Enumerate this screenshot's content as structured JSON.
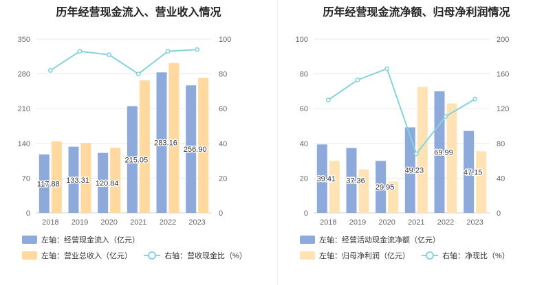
{
  "chart_data": [
    {
      "type": "bar",
      "title": "历年经营现金流入、营业收入情况",
      "categories": [
        "2018",
        "2019",
        "2020",
        "2021",
        "2022",
        "2023"
      ],
      "y_left": {
        "ylim": [
          0,
          350
        ],
        "ticks": [
          "0",
          "70",
          "140",
          "210",
          "280",
          "350"
        ]
      },
      "y_right": {
        "ylim": [
          0,
          100
        ],
        "ticks": [
          "0",
          "20",
          "40",
          "60",
          "80",
          "100"
        ]
      },
      "series": [
        {
          "name": "左轴：经营现金流入（亿元）",
          "type": "bar",
          "axis": "left",
          "color": "#8eaadb",
          "values": [
            117.88,
            133.31,
            120.84,
            215.05,
            283.16,
            256.9
          ],
          "labels": [
            "117.88",
            "133.31",
            "120.84",
            "215.05",
            "283.16",
            "256.90"
          ]
        },
        {
          "name": "左轴：营业总收入（亿元）",
          "type": "bar",
          "axis": "left",
          "color": "#ffd9a0",
          "values": [
            144,
            141,
            131,
            267,
            302,
            272
          ]
        },
        {
          "name": "右轴：营收现金比（%）",
          "type": "line",
          "axis": "right",
          "color": "#86d3dc",
          "values": [
            82,
            93,
            91,
            80,
            93,
            94
          ]
        }
      ],
      "grid": true
    },
    {
      "type": "bar",
      "title": "历年经营现金流净额、归母净利润情况",
      "categories": [
        "2018",
        "2019",
        "2020",
        "2021",
        "2022",
        "2023"
      ],
      "y_left": {
        "ylim": [
          0,
          100
        ],
        "ticks": [
          "0",
          "20",
          "40",
          "60",
          "80",
          "100"
        ]
      },
      "y_right": {
        "ylim": [
          0,
          200
        ],
        "ticks": [
          "0",
          "40",
          "80",
          "120",
          "160",
          "200"
        ]
      },
      "series": [
        {
          "name": "左轴：经营活动现金流净额（亿元）",
          "type": "bar",
          "axis": "left",
          "color": "#8eaadb",
          "values": [
            39.41,
            37.36,
            29.95,
            49.23,
            69.99,
            47.15
          ],
          "labels": [
            "39.41",
            "37.36",
            "29.95",
            "49.23",
            "69.99",
            "47.15"
          ]
        },
        {
          "name": "左轴：归母净利润（亿元）",
          "type": "bar",
          "axis": "left",
          "color": "#ffe3b5",
          "values": [
            30,
            25,
            18,
            72.5,
            63,
            35.5
          ]
        },
        {
          "name": "右轴：净现比（%）",
          "type": "line",
          "axis": "right",
          "color": "#86d3dc",
          "values": [
            130,
            153,
            166,
            68,
            111,
            131
          ]
        }
      ],
      "grid": true
    }
  ]
}
